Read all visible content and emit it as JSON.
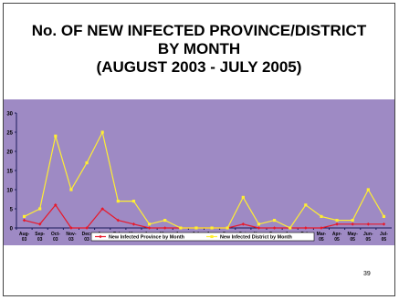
{
  "slide": {
    "title_lines": [
      "No. OF NEW INFECTED PROVINCE/DISTRICT",
      "BY MONTH",
      "(AUGUST 2003 - JULY 2005)"
    ],
    "page_number": "39"
  },
  "chart_data": {
    "type": "line",
    "title": "",
    "xlabel": "",
    "ylabel": "",
    "ylim": [
      0,
      30
    ],
    "yticks": [
      0,
      5,
      10,
      15,
      20,
      25,
      30
    ],
    "grid": false,
    "legend_position": "bottom",
    "categories": [
      [
        "Aug-",
        "03"
      ],
      [
        "Sep-",
        "03"
      ],
      [
        "Oct-",
        "03"
      ],
      [
        "Nov-",
        "03"
      ],
      [
        "Dec-",
        "03"
      ],
      [
        "Jan-",
        "04"
      ],
      [
        "Feb-",
        "04"
      ],
      [
        "Mar-",
        "04"
      ],
      [
        "Apr-",
        "04"
      ],
      [
        "May-",
        "04"
      ],
      [
        "Jun-",
        "04"
      ],
      [
        "Jul-",
        "04"
      ],
      [
        "Aug-",
        "04"
      ],
      [
        "Sep-",
        "04"
      ],
      [
        "Oct-",
        "04"
      ],
      [
        "Nov-",
        "04"
      ],
      [
        "Dec-",
        "04"
      ],
      [
        "Jan-",
        "05"
      ],
      [
        "Feb-",
        "05"
      ],
      [
        "Mar-",
        "05"
      ],
      [
        "Apr-",
        "05"
      ],
      [
        "May-",
        "05"
      ],
      [
        "Jun-",
        "05"
      ],
      [
        "Jul-",
        "05"
      ]
    ],
    "series": [
      {
        "name": "New Infected Province by Month",
        "color": "#e8182a",
        "values": [
          2,
          1,
          6,
          0,
          0,
          5,
          2,
          1,
          0,
          0,
          0,
          0,
          0,
          0,
          1,
          0,
          0,
          0,
          0,
          0,
          1,
          1,
          1,
          1
        ]
      },
      {
        "name": "New Infected District by Month",
        "color": "#ffee33",
        "values": [
          3,
          5,
          24,
          10,
          17,
          25,
          7,
          7,
          1,
          2,
          0,
          0,
          0,
          0,
          8,
          1,
          2,
          0,
          6,
          3,
          2,
          2,
          10,
          3
        ]
      }
    ],
    "colors": {
      "background": "#9e8ac4",
      "axis": "#1a1a5a"
    }
  }
}
